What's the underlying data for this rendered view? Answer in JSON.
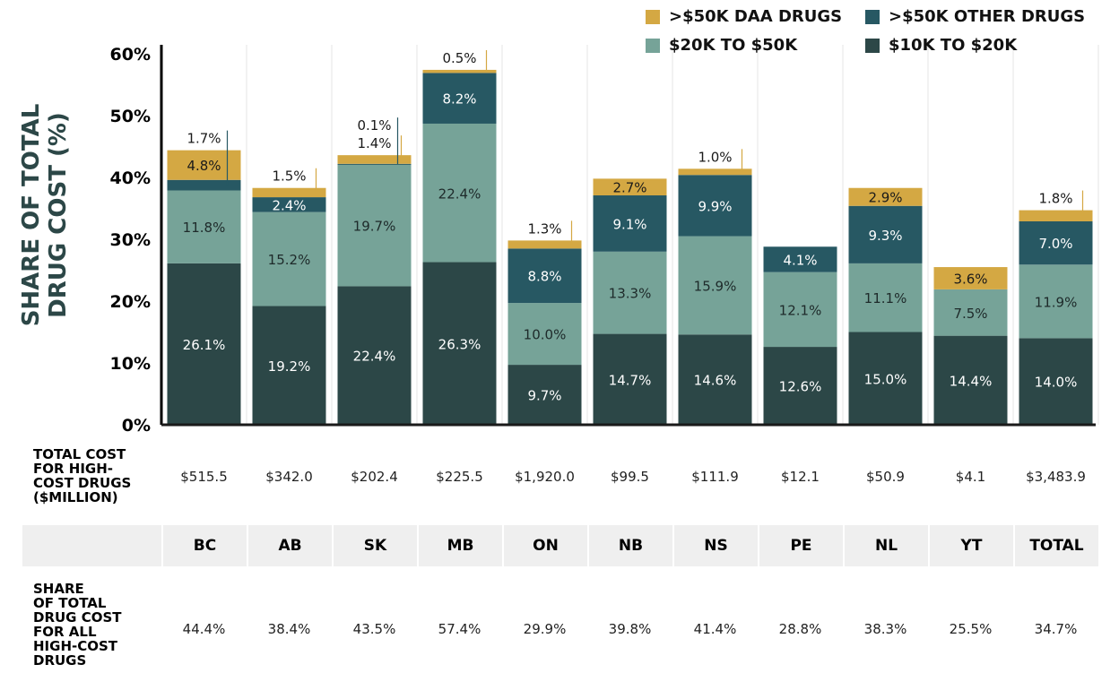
{
  "chart_data": {
    "type": "bar",
    "stacked": true,
    "ylabel": "SHARE OF TOTAL DRUG COST (%)",
    "ylim": [
      0,
      60
    ],
    "yticks": [
      "0%",
      "10%",
      "20%",
      "30%",
      "40%",
      "50%",
      "60%"
    ],
    "grid": false,
    "legend_position": "top-right",
    "categories": [
      "BC",
      "AB",
      "SK",
      "MB",
      "ON",
      "NB",
      "NS",
      "PE",
      "NL",
      "YT",
      "TOTAL"
    ],
    "series": [
      {
        "name": "$10K TO $20K",
        "color": "#2c4747",
        "values": [
          26.1,
          19.2,
          22.4,
          26.3,
          9.7,
          14.7,
          14.6,
          12.6,
          15.0,
          14.4,
          14.0
        ],
        "labels": [
          "26.1%",
          "19.2%",
          "22.4%",
          "26.3%",
          "9.7%",
          "14.7%",
          "14.6%",
          "12.6%",
          "15.0%",
          "14.4%",
          "14.0%"
        ]
      },
      {
        "name": "$20K TO $50K",
        "color": "#76a398",
        "values": [
          11.8,
          15.2,
          19.7,
          22.4,
          10.0,
          13.3,
          15.9,
          12.1,
          11.1,
          7.5,
          11.9
        ],
        "labels": [
          "11.8%",
          "15.2%",
          "19.7%",
          "22.4%",
          "10.0%",
          "13.3%",
          "15.9%",
          "12.1%",
          "11.1%",
          "7.5%",
          "11.9%"
        ]
      },
      {
        "name": ">$50K OTHER DRUGS",
        "color": "#275863",
        "values": [
          1.7,
          2.4,
          0.1,
          8.2,
          8.8,
          9.1,
          9.9,
          4.1,
          9.3,
          0,
          7.0
        ],
        "labels": [
          "1.7%",
          "2.4%",
          "0.1%",
          "8.2%",
          "8.8%",
          "9.1%",
          "9.9%",
          "4.1%",
          "9.3%",
          "",
          "7.0%"
        ]
      },
      {
        "name": ">$50K DAA DRUGS",
        "color": "#d4a843",
        "values": [
          4.8,
          1.5,
          1.4,
          0.5,
          1.3,
          2.7,
          1.0,
          0,
          2.9,
          3.6,
          1.8
        ],
        "labels": [
          "4.8%",
          "1.5%",
          "1.4%",
          "0.5%",
          "1.3%",
          "2.7%",
          "1.0%",
          "",
          "2.9%",
          "3.6%",
          "1.8%"
        ]
      }
    ],
    "legend": [
      {
        "label": ">$50K DAA DRUGS",
        "color": "#d4a843"
      },
      {
        "label": ">$50K OTHER DRUGS",
        "color": "#275863"
      },
      {
        "label": "$20K TO $50K",
        "color": "#76a398"
      },
      {
        "label": "$10K TO $20K",
        "color": "#2c4747"
      }
    ]
  },
  "table": {
    "total_cost_label": "TOTAL COST FOR HIGH-COST DRUGS ($MILLION)",
    "total_cost_label_lines": [
      "TOTAL COST",
      "FOR HIGH-",
      "COST DRUGS",
      "($MILLION)"
    ],
    "total_cost": [
      "$515.5",
      "$342.0",
      "$202.4",
      "$225.5",
      "$1,920.0",
      "$99.5",
      "$111.9",
      "$12.1",
      "$50.9",
      "$4.1",
      "$3,483.9"
    ],
    "share_label": "SHARE OF TOTAL DRUG COST FOR ALL HIGH-COST DRUGS",
    "share_label_lines": [
      "SHARE",
      "OF TOTAL",
      "DRUG COST",
      "FOR ALL",
      "HIGH-COST",
      "DRUGS"
    ],
    "share": [
      "44.4%",
      "38.4%",
      "43.5%",
      "57.4%",
      "29.9%",
      "39.8%",
      "41.4%",
      "28.8%",
      "38.3%",
      "25.5%",
      "34.7%"
    ]
  }
}
